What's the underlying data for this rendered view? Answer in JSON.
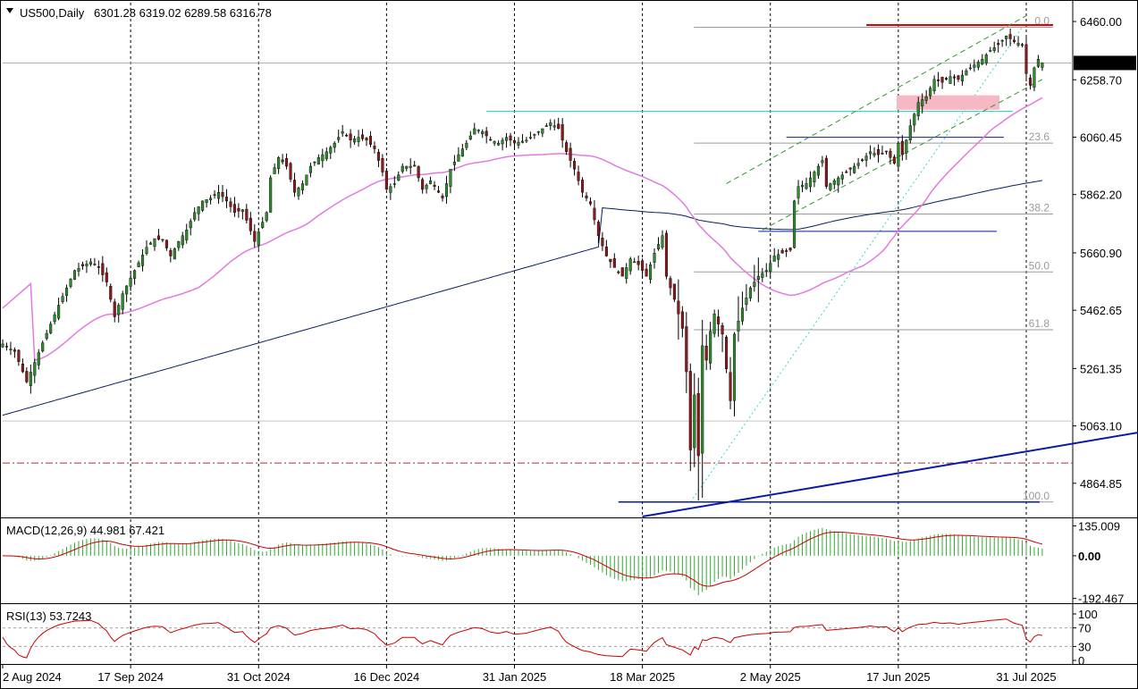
{
  "chart_data": {
    "type": "candlestick",
    "symbol_label": "US500,Daily",
    "ohlc_label": "6301.28 6319.02 6289.58 6316.78",
    "price_axis_ticks": [
      "6460.00",
      "6258.70",
      "6060.45",
      "5862.20",
      "5660.90",
      "5462.65",
      "5261.35",
      "5063.10",
      "4864.85"
    ],
    "price_axis_values": [
      6460.0,
      6258.7,
      6060.45,
      5862.2,
      5660.9,
      5462.65,
      5261.35,
      5063.1,
      4864.85
    ],
    "ylim": [
      4750,
      6525
    ],
    "current_price_label": "6316.78",
    "current_price": 6316.78,
    "date_labels": [
      "2 Aug 2024",
      "17 Sep 2024",
      "31 Oct 2024",
      "16 Dec 2024",
      "31 Jan 2025",
      "18 Mar 2025",
      "2 May 2025",
      "17 Jun 2025",
      "31 Jul 2025"
    ],
    "date_label_bars": [
      0,
      32,
      64,
      96,
      128,
      160,
      192,
      224,
      256
    ],
    "total_bars": 261,
    "close_anchors": [
      [
        0,
        5346
      ],
      [
        3,
        5320
      ],
      [
        6,
        5215
      ],
      [
        10,
        5350
      ],
      [
        14,
        5480
      ],
      [
        18,
        5600
      ],
      [
        22,
        5630
      ],
      [
        24,
        5610
      ],
      [
        26,
        5560
      ],
      [
        28,
        5440
      ],
      [
        30,
        5520
      ],
      [
        33,
        5600
      ],
      [
        36,
        5680
      ],
      [
        38,
        5710
      ],
      [
        40,
        5705
      ],
      [
        42,
        5650
      ],
      [
        44,
        5700
      ],
      [
        46,
        5740
      ],
      [
        48,
        5800
      ],
      [
        50,
        5840
      ],
      [
        52,
        5850
      ],
      [
        54,
        5870
      ],
      [
        56,
        5840
      ],
      [
        58,
        5800
      ],
      [
        60,
        5810
      ],
      [
        63,
        5700
      ],
      [
        66,
        5800
      ],
      [
        67,
        5920
      ],
      [
        69,
        5990
      ],
      [
        71,
        5960
      ],
      [
        73,
        5870
      ],
      [
        75,
        5900
      ],
      [
        77,
        5960
      ],
      [
        79,
        5990
      ],
      [
        81,
        6010
      ],
      [
        83,
        6040
      ],
      [
        85,
        6080
      ],
      [
        87,
        6050
      ],
      [
        89,
        6060
      ],
      [
        91,
        6050
      ],
      [
        93,
        6020
      ],
      [
        95,
        5940
      ],
      [
        96,
        5880
      ],
      [
        98,
        5900
      ],
      [
        100,
        5960
      ],
      [
        103,
        5960
      ],
      [
        105,
        5880
      ],
      [
        107,
        5910
      ],
      [
        110,
        5850
      ],
      [
        112,
        5950
      ],
      [
        114,
        6000
      ],
      [
        116,
        6040
      ],
      [
        118,
        6090
      ],
      [
        120,
        6080
      ],
      [
        122,
        6050
      ],
      [
        124,
        6040
      ],
      [
        126,
        6060
      ],
      [
        128,
        6040
      ],
      [
        131,
        6050
      ],
      [
        134,
        6080
      ],
      [
        137,
        6110
      ],
      [
        139,
        6090
      ],
      [
        141,
        6010
      ],
      [
        143,
        5950
      ],
      [
        145,
        5870
      ],
      [
        147,
        5830
      ],
      [
        149,
        5720
      ],
      [
        151,
        5650
      ],
      [
        153,
        5610
      ],
      [
        155,
        5580
      ],
      [
        157,
        5640
      ],
      [
        159,
        5620
      ],
      [
        161,
        5580
      ],
      [
        163,
        5660
      ],
      [
        165,
        5720
      ],
      [
        166,
        5580
      ],
      [
        168,
        5500
      ],
      [
        170,
        5400
      ],
      [
        171,
        5250
      ],
      [
        172,
        4980
      ],
      [
        173,
        5170
      ],
      [
        174,
        4960
      ],
      [
        175,
        5340
      ],
      [
        176,
        5290
      ],
      [
        177,
        5390
      ],
      [
        178,
        5450
      ],
      [
        180,
        5380
      ],
      [
        181,
        5260
      ],
      [
        182,
        5150
      ],
      [
        183,
        5380
      ],
      [
        185,
        5470
      ],
      [
        187,
        5540
      ],
      [
        189,
        5580
      ],
      [
        191,
        5600
      ],
      [
        193,
        5650
      ],
      [
        195,
        5660
      ],
      [
        197,
        5670
      ],
      [
        198,
        5840
      ],
      [
        199,
        5890
      ],
      [
        201,
        5900
      ],
      [
        203,
        5940
      ],
      [
        205,
        5980
      ],
      [
        206,
        5890
      ],
      [
        207,
        5900
      ],
      [
        209,
        5920
      ],
      [
        211,
        5940
      ],
      [
        213,
        5960
      ],
      [
        215,
        5980
      ],
      [
        217,
        6010
      ],
      [
        219,
        6000
      ],
      [
        221,
        6010
      ],
      [
        223,
        5970
      ],
      [
        224,
        6040
      ],
      [
        225,
        6000
      ],
      [
        227,
        6100
      ],
      [
        229,
        6180
      ],
      [
        231,
        6200
      ],
      [
        233,
        6260
      ],
      [
        235,
        6250
      ],
      [
        237,
        6270
      ],
      [
        239,
        6260
      ],
      [
        241,
        6290
      ],
      [
        243,
        6310
      ],
      [
        245,
        6330
      ],
      [
        247,
        6360
      ],
      [
        249,
        6380
      ],
      [
        251,
        6410
      ],
      [
        253,
        6390
      ],
      [
        255,
        6380
      ],
      [
        256,
        6280
      ],
      [
        257,
        6240
      ],
      [
        258,
        6300
      ],
      [
        259,
        6330
      ],
      [
        260,
        6317
      ]
    ],
    "fib_levels": [
      {
        "label": "0.0",
        "value": 6440
      },
      {
        "label": "23.6",
        "value": 6040
      },
      {
        "label": "38.2",
        "value": 5795
      },
      {
        "label": "50.0",
        "value": 5595
      },
      {
        "label": "61.8",
        "value": 5395
      },
      {
        "label": "100.0",
        "value": 4800
      }
    ],
    "indicator_panels": {
      "macd": {
        "label": "MACD(12,26,9) 44.981 67.421",
        "macd_value": 44.981,
        "signal_value": 67.421,
        "axis_ticks": [
          "135.009",
          "0.00",
          "-192.467"
        ],
        "axis_values": [
          135.009,
          0,
          -192.467
        ],
        "ylim": [
          -210,
          165
        ]
      },
      "rsi": {
        "label": "RSI(13) 53.7243",
        "rsi_value": 53.7243,
        "axis_ticks": [
          "100",
          "70",
          "30",
          "0"
        ],
        "axis_values": [
          100,
          70,
          30,
          0
        ],
        "ylim": [
          0,
          100
        ]
      }
    },
    "colors": {
      "bull": "#2e8b2e",
      "bear": "#8b1a1a",
      "ma_fast": "#e27ae0",
      "ma_slow": "#0a1f5c",
      "resistance": "#e00000",
      "support_zone": "#f5b8c4",
      "cyan_line": "#2fd6d6",
      "channel": "#2e9a2e",
      "trendline": "#0a1aa8",
      "macd_hist": "#33aa33",
      "macd_signal": "#cc0000",
      "rsi_line": "#cc0000",
      "grid": "#000000",
      "fib": "#9a9a9a",
      "dashdot_level": "#b03030"
    }
  }
}
